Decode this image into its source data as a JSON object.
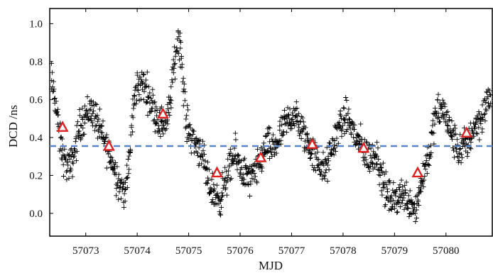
{
  "chart_data": {
    "type": "scatter",
    "xlabel": "MJD",
    "ylabel": "DCD /ns",
    "xlim": [
      57072.3,
      57080.9
    ],
    "ylim": [
      -0.12,
      1.08
    ],
    "x_ticks": [
      57073,
      57074,
      57075,
      57076,
      57077,
      57078,
      57079,
      57080
    ],
    "x_tick_labels": [
      "57073",
      "57074",
      "57075",
      "57076",
      "57077",
      "57078",
      "57079",
      "57080"
    ],
    "y_ticks": [
      0.0,
      0.2,
      0.4,
      0.6,
      0.8,
      1.0
    ],
    "y_tick_labels": [
      "0.0",
      "0.2",
      "0.4",
      "0.6",
      "0.8",
      "1.0"
    ],
    "grid": false,
    "reference_line": {
      "y": 0.355,
      "style": "dashed",
      "color": "#5b86c6"
    },
    "series": [
      {
        "marker": "plus",
        "color": "#000000",
        "trend": [
          [
            57072.3,
            0.74
          ],
          [
            57072.4,
            0.62
          ],
          [
            57072.5,
            0.38
          ],
          [
            57072.6,
            0.26
          ],
          [
            57072.7,
            0.24
          ],
          [
            57072.8,
            0.35
          ],
          [
            57072.9,
            0.48
          ],
          [
            57073.0,
            0.52
          ],
          [
            57073.1,
            0.55
          ],
          [
            57073.2,
            0.5
          ],
          [
            57073.3,
            0.42
          ],
          [
            57073.45,
            0.32
          ],
          [
            57073.6,
            0.2
          ],
          [
            57073.7,
            0.13
          ],
          [
            57073.78,
            0.12
          ],
          [
            57073.85,
            0.28
          ],
          [
            57073.92,
            0.55
          ],
          [
            57074.0,
            0.68
          ],
          [
            57074.15,
            0.67
          ],
          [
            57074.3,
            0.57
          ],
          [
            57074.45,
            0.47
          ],
          [
            57074.6,
            0.5
          ],
          [
            57074.72,
            0.78
          ],
          [
            57074.8,
            0.95
          ],
          [
            57074.85,
            0.85
          ],
          [
            57074.95,
            0.48
          ],
          [
            57075.1,
            0.38
          ],
          [
            57075.25,
            0.33
          ],
          [
            57075.35,
            0.18
          ],
          [
            57075.5,
            0.1
          ],
          [
            57075.6,
            0.07
          ],
          [
            57075.75,
            0.2
          ],
          [
            57075.9,
            0.31
          ],
          [
            57076.05,
            0.22
          ],
          [
            57076.2,
            0.17
          ],
          [
            57076.35,
            0.24
          ],
          [
            57076.5,
            0.36
          ],
          [
            57076.65,
            0.34
          ],
          [
            57076.8,
            0.42
          ],
          [
            57076.95,
            0.5
          ],
          [
            57077.05,
            0.52
          ],
          [
            57077.2,
            0.44
          ],
          [
            57077.35,
            0.35
          ],
          [
            57077.5,
            0.28
          ],
          [
            57077.65,
            0.22
          ],
          [
            57077.8,
            0.35
          ],
          [
            57077.95,
            0.48
          ],
          [
            57078.1,
            0.5
          ],
          [
            57078.25,
            0.4
          ],
          [
            57078.4,
            0.33
          ],
          [
            57078.55,
            0.28
          ],
          [
            57078.65,
            0.33
          ],
          [
            57078.72,
            0.22
          ],
          [
            57078.85,
            0.1
          ],
          [
            57079.0,
            0.06
          ],
          [
            57079.1,
            0.11
          ],
          [
            57079.2,
            0.09
          ],
          [
            57079.32,
            0.06
          ],
          [
            57079.42,
            0.03
          ],
          [
            57079.55,
            0.2
          ],
          [
            57079.7,
            0.35
          ],
          [
            57079.8,
            0.52
          ],
          [
            57079.95,
            0.55
          ],
          [
            57080.1,
            0.42
          ],
          [
            57080.25,
            0.33
          ],
          [
            57080.4,
            0.36
          ],
          [
            57080.55,
            0.46
          ],
          [
            57080.7,
            0.51
          ],
          [
            57080.85,
            0.62
          ],
          [
            57080.9,
            0.64
          ]
        ]
      },
      {
        "marker": "triangle",
        "color": "#dd2222",
        "points": [
          [
            57072.55,
            0.455
          ],
          [
            57073.45,
            0.355
          ],
          [
            57074.5,
            0.525
          ],
          [
            57075.55,
            0.215
          ],
          [
            57076.4,
            0.295
          ],
          [
            57077.4,
            0.365
          ],
          [
            57078.4,
            0.345
          ],
          [
            57079.45,
            0.215
          ],
          [
            57080.4,
            0.425
          ]
        ]
      }
    ]
  }
}
